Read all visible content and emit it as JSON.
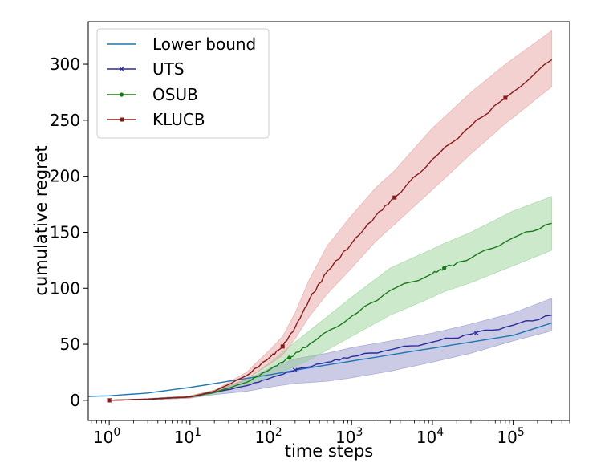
{
  "chart_data": {
    "type": "line",
    "xlabel": "time steps",
    "ylabel": "cumulative regret",
    "xscale": "log",
    "xlim": [
      0.55,
      500000
    ],
    "ylim": [
      -18,
      338
    ],
    "xticks": [
      {
        "value": 1,
        "base": "10",
        "exp": "0"
      },
      {
        "value": 10,
        "base": "10",
        "exp": "1"
      },
      {
        "value": 100,
        "base": "10",
        "exp": "2"
      },
      {
        "value": 1000,
        "base": "10",
        "exp": "3"
      },
      {
        "value": 10000,
        "base": "10",
        "exp": "4"
      },
      {
        "value": 100000,
        "base": "10",
        "exp": "5"
      }
    ],
    "yticks": [
      0,
      50,
      100,
      150,
      200,
      250,
      300
    ],
    "grid": false,
    "legend_position": "top-left",
    "series": [
      {
        "name": "Lower bound",
        "color": "#1f77b4",
        "marker": "none",
        "x": [
          0.55,
          1,
          3,
          10,
          30,
          100,
          300,
          1000,
          3000,
          10000,
          30000,
          100000,
          300000
        ],
        "y": [
          3.5,
          4,
          6.5,
          11.5,
          17,
          23,
          29,
          35,
          40.5,
          46.5,
          52,
          58,
          69
        ],
        "band_lower": null,
        "band_upper": null
      },
      {
        "name": "UTS",
        "color": "#2a2aa0",
        "band_color": "#8c8cc8",
        "marker": "x",
        "marker_x": [
          1,
          200,
          35000
        ],
        "x": [
          1,
          3,
          10,
          20,
          50,
          100,
          200,
          500,
          1000,
          3000,
          10000,
          30000,
          100000,
          300000
        ],
        "y": [
          0,
          1,
          3,
          7,
          13,
          20,
          27,
          34,
          39,
          45,
          52,
          59,
          67,
          76
        ],
        "band_lower": [
          0,
          0.5,
          2,
          5,
          8,
          12,
          15,
          17,
          20,
          26,
          34,
          42,
          53,
          62
        ],
        "band_upper": [
          0,
          1.5,
          4,
          9,
          18,
          29,
          37,
          42,
          47,
          53,
          60,
          68,
          78,
          91
        ]
      },
      {
        "name": "OSUB",
        "color": "#1a7a1a",
        "band_color": "#8fcf8f",
        "marker": "circle",
        "marker_x": [
          1,
          170,
          14000
        ],
        "x": [
          1,
          3,
          10,
          20,
          50,
          100,
          170,
          300,
          1000,
          3000,
          10000,
          14000,
          30000,
          100000,
          300000
        ],
        "y": [
          0,
          1,
          3,
          7,
          16,
          28,
          38,
          50,
          75,
          98,
          113,
          118,
          127,
          145,
          158
        ],
        "band_lower": [
          0,
          0.5,
          2,
          6,
          13,
          22,
          28,
          36,
          57,
          76,
          92,
          97,
          105,
          120,
          134
        ],
        "band_upper": [
          0,
          1.5,
          4,
          8,
          19,
          34,
          48,
          62,
          92,
          118,
          135,
          140,
          150,
          169,
          182
        ]
      },
      {
        "name": "KLUCB",
        "color": "#8b1a1a",
        "band_color": "#e59a9a",
        "marker": "square",
        "marker_x": [
          1,
          140,
          3400,
          80000
        ],
        "x": [
          1,
          3,
          10,
          20,
          50,
          100,
          140,
          200,
          300,
          500,
          1000,
          2000,
          3400,
          10000,
          30000,
          80000,
          300000
        ],
        "y": [
          0,
          1,
          3,
          8,
          22,
          39,
          48,
          65,
          90,
          115,
          140,
          165,
          181,
          215,
          245,
          270,
          304
        ],
        "band_lower": [
          0,
          0.5,
          2,
          7,
          19,
          33,
          40,
          55,
          75,
          95,
          118,
          142,
          157,
          188,
          220,
          247,
          280
        ],
        "band_upper": [
          0,
          1.5,
          4,
          9,
          25,
          46,
          57,
          78,
          108,
          138,
          165,
          190,
          205,
          243,
          275,
          300,
          330
        ]
      }
    ]
  }
}
